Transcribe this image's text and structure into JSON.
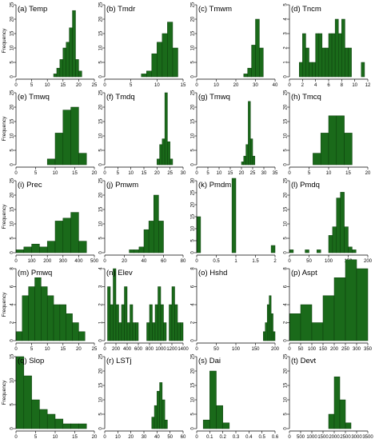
{
  "figure": {
    "ylabel": "Frequency"
  },
  "colors": {
    "bar_fill": "#1a6a1a",
    "bar_stroke": "#0b3d0b",
    "axis": "#000000"
  },
  "chart_data": [
    {
      "type": "bar",
      "title": "(a) Temp",
      "xlim": [
        0,
        25
      ],
      "ylim": [
        0,
        25
      ],
      "xticks": [
        0,
        5,
        10,
        15,
        20,
        25
      ],
      "yticks": [
        0,
        5,
        10,
        15,
        20,
        25
      ],
      "bin_width": 1,
      "x": [
        12,
        13,
        14,
        15,
        16,
        17,
        18,
        19,
        20
      ],
      "values": [
        1,
        3,
        6,
        10,
        12,
        17,
        23,
        6,
        2
      ]
    },
    {
      "type": "bar",
      "title": "(b) Tmdr",
      "xlim": [
        0,
        15
      ],
      "ylim": [
        0,
        25
      ],
      "xticks": [
        0,
        5,
        10,
        15
      ],
      "yticks": [
        0,
        5,
        10,
        15,
        20,
        25
      ],
      "bin_width": 1,
      "x": [
        7,
        8,
        9,
        10,
        11,
        12,
        13
      ],
      "values": [
        1,
        2,
        8,
        12,
        15,
        19,
        10
      ]
    },
    {
      "type": "bar",
      "title": "(c) Tmwm",
      "xlim": [
        0,
        40
      ],
      "ylim": [
        0,
        25
      ],
      "xticks": [
        0,
        10,
        20,
        30,
        40
      ],
      "yticks": [
        0,
        5,
        10,
        15,
        20,
        25
      ],
      "bin_width": 2,
      "x": [
        24,
        26,
        28,
        30,
        32
      ],
      "values": [
        1,
        3,
        11,
        20,
        10
      ]
    },
    {
      "type": "bar",
      "title": "(d) Tncm",
      "xlim": [
        0,
        12
      ],
      "ylim": [
        0,
        5
      ],
      "xticks": [
        0,
        2,
        4,
        6,
        8,
        10,
        12
      ],
      "yticks": [
        0,
        1,
        2,
        3,
        4,
        5
      ],
      "bin_width": 0.5,
      "x": [
        1.5,
        2,
        2.5,
        3,
        3.5,
        4,
        4.5,
        5,
        5.5,
        6,
        6.5,
        7,
        7.5,
        8,
        8.5,
        9,
        11
      ],
      "values": [
        1,
        3,
        2,
        1,
        1,
        3,
        3,
        2,
        2,
        3,
        3,
        4,
        3,
        4,
        2,
        2,
        1
      ]
    },
    {
      "type": "bar",
      "title": "(e) Tmwq",
      "xlim": [
        0,
        20
      ],
      "ylim": [
        0,
        25
      ],
      "xticks": [
        0,
        5,
        10,
        15,
        20
      ],
      "yticks": [
        0,
        5,
        10,
        15,
        20,
        25
      ],
      "bin_width": 2,
      "x": [
        8,
        10,
        12,
        14,
        16
      ],
      "values": [
        2,
        11,
        19,
        20,
        4
      ]
    },
    {
      "type": "bar",
      "title": "(f) Tmdq",
      "xlim": [
        0,
        30
      ],
      "ylim": [
        0,
        25
      ],
      "xticks": [
        0,
        5,
        10,
        15,
        20,
        25,
        30
      ],
      "yticks": [
        0,
        5,
        10,
        15,
        20,
        25
      ],
      "bin_width": 1,
      "x": [
        20,
        21,
        22,
        23,
        24,
        25
      ],
      "values": [
        2,
        7,
        9,
        25,
        8,
        2
      ]
    },
    {
      "type": "bar",
      "title": "(g) Tmwq",
      "xlim": [
        0,
        35
      ],
      "ylim": [
        0,
        25
      ],
      "xticks": [
        0,
        5,
        10,
        15,
        20,
        25,
        30,
        35
      ],
      "yticks": [
        0,
        5,
        10,
        15,
        20,
        25
      ],
      "bin_width": 1,
      "x": [
        20,
        21,
        22,
        23,
        24,
        25
      ],
      "values": [
        1,
        3,
        7,
        22,
        9,
        3
      ]
    },
    {
      "type": "bar",
      "title": "(h) Tmcq",
      "xlim": [
        0,
        20
      ],
      "ylim": [
        0,
        25
      ],
      "xticks": [
        0,
        5,
        10,
        15,
        20
      ],
      "yticks": [
        0,
        5,
        10,
        15,
        20,
        25
      ],
      "bin_width": 2,
      "x": [
        6,
        8,
        10,
        12,
        14
      ],
      "values": [
        4,
        11,
        17,
        17,
        11
      ]
    },
    {
      "type": "bar",
      "title": "(i) Prec",
      "xlim": [
        0,
        500
      ],
      "ylim": [
        0,
        25
      ],
      "xticks": [
        0,
        100,
        200,
        300,
        400,
        500
      ],
      "yticks": [
        0,
        5,
        10,
        15,
        20,
        25
      ],
      "bin_width": 50,
      "x": [
        0,
        50,
        100,
        150,
        200,
        250,
        300,
        350,
        400
      ],
      "values": [
        1,
        2,
        3,
        2,
        4,
        11,
        12,
        14,
        4
      ]
    },
    {
      "type": "bar",
      "title": "(j) Pmwm",
      "xlim": [
        0,
        80
      ],
      "ylim": [
        0,
        25
      ],
      "xticks": [
        0,
        20,
        40,
        60,
        80
      ],
      "yticks": [
        0,
        5,
        10,
        15,
        20,
        25
      ],
      "bin_width": 5,
      "x": [
        25,
        30,
        35,
        40,
        45,
        50,
        55
      ],
      "values": [
        1,
        1,
        2,
        8,
        11,
        20,
        11
      ]
    },
    {
      "type": "bar",
      "title": "(k) Pmdm",
      "xlim": [
        0,
        2
      ],
      "ylim": [
        0,
        30
      ],
      "xticks": [
        0,
        0.5,
        1,
        1.5,
        2
      ],
      "yticks": [
        0,
        5,
        10,
        15,
        20,
        25,
        30
      ],
      "bin_width": 0.1,
      "x": [
        0,
        0.9,
        1.9
      ],
      "values": [
        15,
        31,
        3
      ]
    },
    {
      "type": "bar",
      "title": "(l) Pmdq",
      "xlim": [
        0,
        200
      ],
      "ylim": [
        0,
        25
      ],
      "xticks": [
        0,
        50,
        100,
        150,
        200
      ],
      "yticks": [
        0,
        5,
        10,
        15,
        20,
        25
      ],
      "bin_width": 10,
      "x": [
        0,
        40,
        70,
        100,
        110,
        120,
        130,
        140,
        150,
        160
      ],
      "values": [
        1,
        1,
        1,
        6,
        9,
        19,
        21,
        9,
        2,
        1
      ]
    },
    {
      "type": "bar",
      "title": "(m) Pmwq",
      "xlim": [
        0,
        25
      ],
      "ylim": [
        0,
        8
      ],
      "xticks": [
        0,
        5,
        10,
        15,
        20,
        25
      ],
      "yticks": [
        0,
        2,
        4,
        6,
        8
      ],
      "bin_width": 2,
      "x": [
        0,
        2,
        4,
        6,
        8,
        10,
        12,
        14,
        16,
        18,
        20
      ],
      "values": [
        1,
        5,
        6,
        7,
        6,
        5,
        4,
        4,
        3,
        2,
        1
      ]
    },
    {
      "type": "bar",
      "title": "(n) Elev",
      "xlim": [
        0,
        1400
      ],
      "ylim": [
        0,
        4
      ],
      "xticks": [
        0,
        200,
        400,
        600,
        800,
        1000,
        1200,
        1400
      ],
      "yticks": [
        0,
        1,
        2,
        3,
        4
      ],
      "bin_width": 50,
      "x": [
        50,
        100,
        150,
        200,
        250,
        300,
        350,
        400,
        450,
        500,
        550,
        750,
        800,
        850,
        900,
        950,
        1000,
        1050,
        1150,
        1200,
        1250,
        1300,
        1350
      ],
      "values": [
        3,
        2,
        4,
        2,
        1,
        2,
        3,
        1,
        2,
        1,
        1,
        1,
        2,
        1,
        2,
        3,
        2,
        1,
        2,
        3,
        2,
        1,
        1
      ]
    },
    {
      "type": "bar",
      "title": "(o) Hshd",
      "xlim": [
        0,
        200
      ],
      "ylim": [
        0,
        8
      ],
      "xticks": [
        0,
        50,
        100,
        150,
        200
      ],
      "yticks": [
        0,
        2,
        4,
        6,
        8
      ],
      "bin_width": 5,
      "x": [
        170,
        175,
        180,
        185,
        190,
        195
      ],
      "values": [
        1,
        2,
        4,
        5,
        3,
        1
      ]
    },
    {
      "type": "bar",
      "title": "(p) Aspt",
      "xlim": [
        0,
        350
      ],
      "ylim": [
        0,
        8
      ],
      "xticks": [
        0,
        50,
        100,
        150,
        200,
        250,
        300,
        350
      ],
      "yticks": [
        0,
        2,
        4,
        6,
        8
      ],
      "bin_width": 50,
      "x": [
        0,
        50,
        100,
        150,
        200,
        250,
        300
      ],
      "values": [
        3,
        4,
        2,
        5,
        7,
        9,
        8
      ]
    },
    {
      "type": "bar",
      "title": "(q) Slop",
      "xlim": [
        0,
        20
      ],
      "ylim": [
        0,
        15
      ],
      "xticks": [
        0,
        5,
        10,
        15,
        20
      ],
      "yticks": [
        0,
        5,
        10,
        15
      ],
      "bin_width": 2,
      "x": [
        0,
        2,
        4,
        6,
        8,
        10,
        12,
        14,
        16
      ],
      "values": [
        15,
        11,
        6,
        4,
        3,
        2,
        1,
        1,
        1
      ]
    },
    {
      "type": "bar",
      "title": "(r) LSTj",
      "xlim": [
        0,
        60
      ],
      "ylim": [
        0,
        25
      ],
      "xticks": [
        0,
        10,
        20,
        30,
        40,
        50,
        60
      ],
      "yticks": [
        0,
        5,
        10,
        15,
        20,
        25
      ],
      "bin_width": 2,
      "x": [
        36,
        38,
        40,
        42,
        44,
        46
      ],
      "values": [
        4,
        8,
        13,
        16,
        10,
        3
      ]
    },
    {
      "type": "bar",
      "title": "(s) Dai",
      "xlim": [
        0,
        0.6
      ],
      "ylim": [
        0,
        25
      ],
      "xticks": [
        0,
        0.1,
        0.2,
        0.3,
        0.4,
        0.5,
        0.6
      ],
      "yticks": [
        0,
        5,
        10,
        15,
        20,
        25
      ],
      "bin_width": 0.05,
      "x": [
        0.05,
        0.1,
        0.15,
        0.2
      ],
      "values": [
        3,
        20,
        8,
        2
      ]
    },
    {
      "type": "bar",
      "title": "(t) Devt",
      "xlim": [
        0,
        3500
      ],
      "ylim": [
        0,
        25
      ],
      "xticks": [
        0,
        500,
        1000,
        1500,
        2000,
        2500,
        3000,
        3500
      ],
      "yticks": [
        0,
        5,
        10,
        15,
        20,
        25
      ],
      "bin_width": 250,
      "x": [
        1750,
        2000,
        2250,
        2500
      ],
      "values": [
        5,
        18,
        10,
        2
      ]
    }
  ]
}
